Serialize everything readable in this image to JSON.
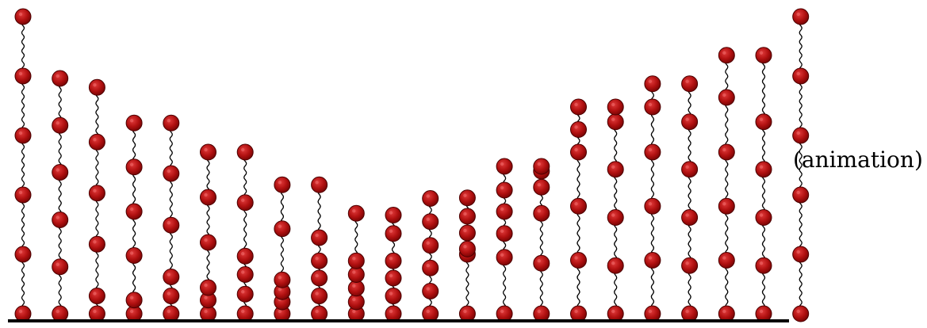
{
  "caption": "(animation)",
  "colors": {
    "bead": "#b01010",
    "bead_edge": "#4a0000",
    "spring": "#000000",
    "floor": "#000000"
  },
  "figure": {
    "description_type": "spring-bead-chains",
    "chains": [
      {
        "beads": [
          0.0,
          1.0,
          2.0,
          3.0,
          4.0,
          5.0
        ]
      },
      {
        "beads": [
          0.0,
          0.79,
          1.58,
          2.38,
          3.17,
          3.96
        ]
      },
      {
        "beads": [
          0.0,
          0.3,
          1.17,
          2.03,
          2.89,
          3.81
        ]
      },
      {
        "beads": [
          0.0,
          0.23,
          0.98,
          1.72,
          2.47,
          3.21
        ]
      },
      {
        "beads": [
          0.0,
          0.3,
          0.62,
          1.49,
          2.36,
          3.21
        ]
      },
      {
        "beads": [
          0.0,
          0.23,
          0.44,
          1.2,
          1.96,
          2.72
        ]
      },
      {
        "beads": [
          0.0,
          0.33,
          0.66,
          0.97,
          1.87,
          2.72
        ]
      },
      {
        "beads": [
          0.0,
          0.2,
          0.37,
          0.57,
          1.43,
          2.17
        ]
      },
      {
        "beads": [
          0.0,
          0.3,
          0.6,
          0.89,
          1.28,
          2.17
        ]
      },
      {
        "beads": [
          0.0,
          0.2,
          0.43,
          0.66,
          0.89,
          1.69
        ]
      },
      {
        "beads": [
          0.0,
          0.3,
          0.6,
          0.89,
          1.35,
          1.66
        ]
      },
      {
        "beads": [
          0.0,
          0.38,
          0.77,
          1.15,
          1.55,
          1.94
        ]
      },
      {
        "beads": [
          0.0,
          1.0,
          1.09,
          1.36,
          1.64,
          1.95
        ]
      },
      {
        "beads": [
          0.0,
          0.95,
          1.35,
          1.72,
          2.08,
          2.48
        ]
      },
      {
        "beads": [
          0.0,
          0.85,
          1.69,
          2.13,
          2.4,
          2.48
        ]
      },
      {
        "beads": [
          0.0,
          0.9,
          1.81,
          2.72,
          3.1,
          3.48
        ]
      },
      {
        "beads": [
          0.0,
          0.81,
          1.62,
          2.43,
          3.23,
          3.48
        ]
      },
      {
        "beads": [
          0.0,
          0.9,
          1.81,
          2.72,
          3.48,
          3.87
        ]
      },
      {
        "beads": [
          0.0,
          0.81,
          1.62,
          2.43,
          3.23,
          3.87
        ]
      },
      {
        "beads": [
          0.0,
          0.9,
          1.81,
          2.72,
          3.64,
          4.35
        ]
      },
      {
        "beads": [
          0.0,
          0.81,
          1.62,
          2.43,
          3.23,
          4.35
        ]
      },
      {
        "beads": [
          0.0,
          1.0,
          2.0,
          3.0,
          4.0,
          5.0
        ]
      }
    ]
  }
}
